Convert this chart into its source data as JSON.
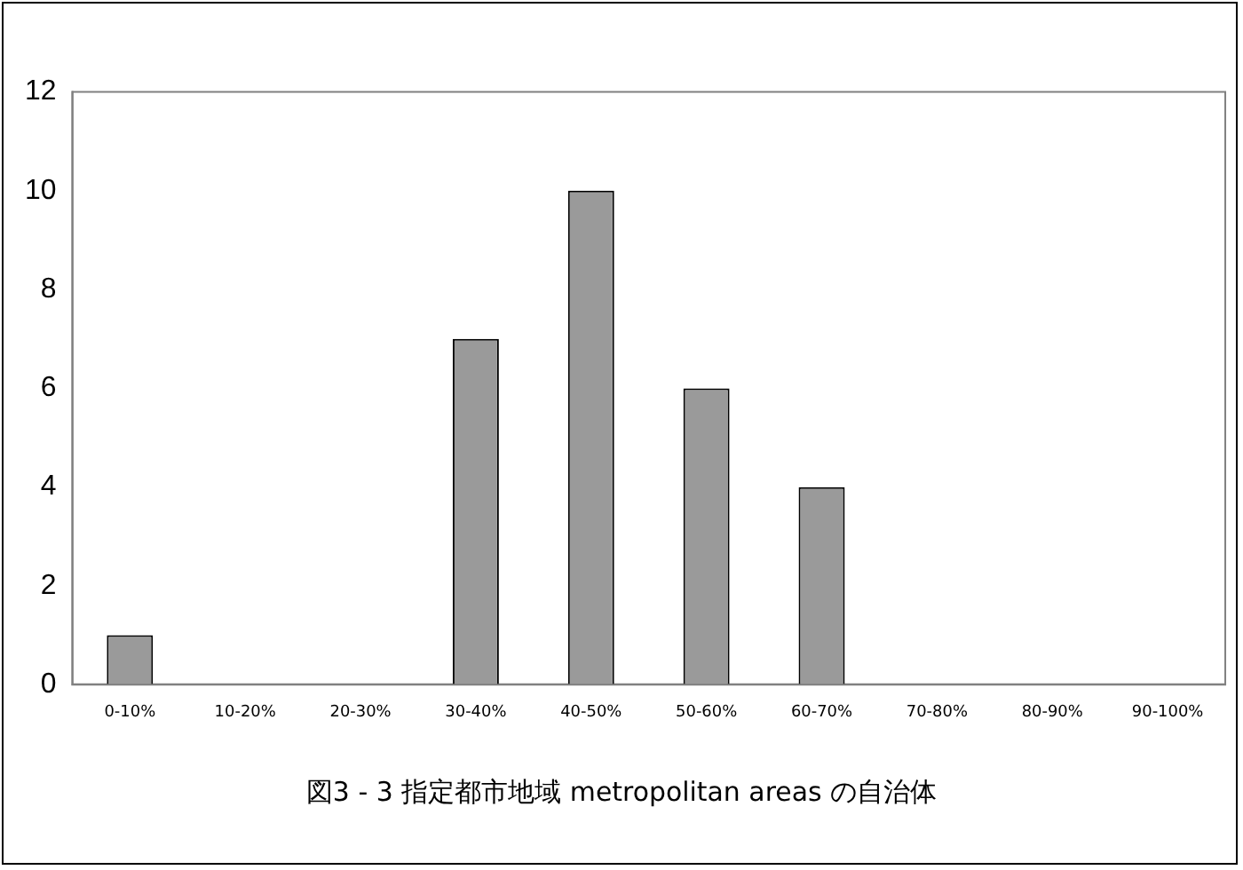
{
  "chart_data": {
    "type": "bar",
    "title": "図3 - 3 指定都市地域 metropolitan areas の自治体",
    "categories": [
      "0-10%",
      "10-20%",
      "20-30%",
      "30-40%",
      "40-50%",
      "50-60%",
      "60-70%",
      "70-80%",
      "80-90%",
      "90-100%"
    ],
    "values": [
      1,
      0,
      0,
      7,
      10,
      6,
      4,
      0,
      0,
      0
    ],
    "color": "#9a9a9a",
    "ylim": [
      0,
      12
    ],
    "yticks": [
      0,
      2,
      4,
      6,
      8,
      10,
      12
    ],
    "grid": false,
    "legend": false
  }
}
